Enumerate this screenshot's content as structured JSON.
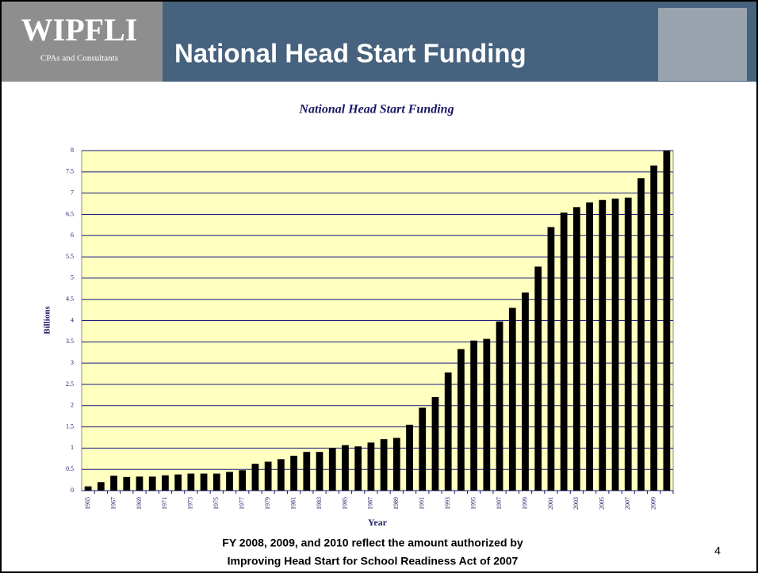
{
  "header": {
    "logo": "WIPFLI",
    "logo_tagline": "CPAs and Consultants",
    "title": "National Head Start Funding"
  },
  "chart_data": {
    "type": "bar",
    "title": "National Head Start Funding",
    "x_label": "Year",
    "y_label": "Billions",
    "categories": [
      "1965",
      null,
      "1967",
      null,
      "1969",
      null,
      "1971",
      null,
      "1973",
      null,
      "1975",
      null,
      "1977",
      null,
      "1979",
      null,
      "1981",
      null,
      "1983",
      null,
      "1985",
      null,
      "1987",
      null,
      "1989",
      null,
      "1991",
      null,
      "1993",
      null,
      "1995",
      null,
      "1997",
      null,
      "1999",
      null,
      "2001",
      null,
      "2003",
      null,
      "2005",
      null,
      "2007",
      null,
      "2009",
      null
    ],
    "values": [
      0.1,
      0.2,
      0.35,
      0.32,
      0.33,
      0.33,
      0.36,
      0.38,
      0.4,
      0.4,
      0.4,
      0.44,
      0.48,
      0.63,
      0.68,
      0.74,
      0.82,
      0.91,
      0.91,
      1.0,
      1.07,
      1.04,
      1.13,
      1.21,
      1.24,
      1.55,
      1.95,
      2.2,
      2.78,
      3.33,
      3.53,
      3.57,
      3.98,
      4.3,
      4.66,
      5.27,
      6.2,
      6.54,
      6.67,
      6.78,
      6.84,
      6.87,
      6.89,
      7.35,
      7.65,
      8.0
    ],
    "color": "#000000",
    "plot_background": "#ffffc0",
    "grid_color": "#1a1a80",
    "grid": true,
    "ylim": [
      0,
      8
    ],
    "yticks": [
      0,
      0.5,
      1,
      1.5,
      2,
      2.5,
      3,
      3.5,
      4,
      4.5,
      5,
      5.5,
      6,
      6.5,
      7,
      7.5,
      8
    ]
  },
  "footnote": [
    "FY 2008, 2009, and 2010 reflect the amount authorized by",
    "Improving Head Start for School Readiness Act of 2007"
  ],
  "page_number": "4"
}
